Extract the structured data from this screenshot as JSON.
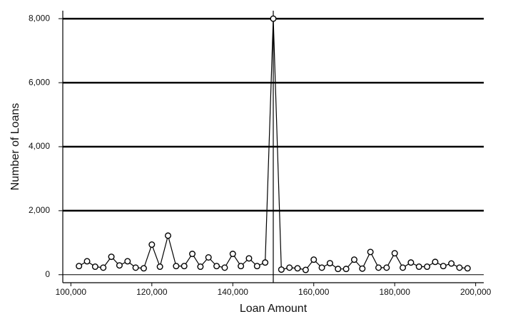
{
  "chart_data": {
    "type": "line",
    "x_label": "Loan Amount",
    "y_label": "Number of Loans",
    "x": [
      102000,
      104000,
      106000,
      108000,
      110000,
      112000,
      114000,
      116000,
      118000,
      120000,
      122000,
      124000,
      126000,
      128000,
      130000,
      132000,
      134000,
      136000,
      138000,
      140000,
      142000,
      144000,
      146000,
      148000,
      150000,
      152000,
      154000,
      156000,
      158000,
      160000,
      162000,
      164000,
      166000,
      168000,
      170000,
      172000,
      174000,
      176000,
      178000,
      180000,
      182000,
      184000,
      186000,
      188000,
      190000,
      192000,
      194000,
      196000,
      198000
    ],
    "series": [
      {
        "color": "#000000",
        "values": [
          270,
          420,
          250,
          220,
          560,
          290,
          420,
          220,
          200,
          940,
          250,
          1220,
          270,
          270,
          650,
          250,
          540,
          270,
          220,
          650,
          270,
          510,
          270,
          380,
          8000,
          160,
          220,
          200,
          150,
          470,
          220,
          360,
          180,
          180,
          470,
          190,
          710,
          220,
          220,
          670,
          220,
          380,
          250,
          250,
          400,
          270,
          350,
          220,
          200
        ]
      }
    ],
    "xlim": [
      98000,
      202000
    ],
    "ylim": [
      -250,
      8250
    ],
    "xticks": [
      {
        "value": 100000,
        "label": "100,000"
      },
      {
        "value": 120000,
        "label": "120,000"
      },
      {
        "value": 140000,
        "label": "140,000"
      },
      {
        "value": 160000,
        "label": "160,000"
      },
      {
        "value": 180000,
        "label": "180,000"
      },
      {
        "value": 200000,
        "label": "200,000"
      }
    ],
    "yticks": [
      0,
      {
        "value": 2000,
        "label": "2,000"
      },
      {
        "value": 4000,
        "label": "4,000"
      },
      {
        "value": 6000,
        "label": "6,000"
      },
      {
        "value": 8000,
        "label": "8,000"
      }
    ],
    "vline": 150000,
    "grid": true,
    "markers": true
  }
}
